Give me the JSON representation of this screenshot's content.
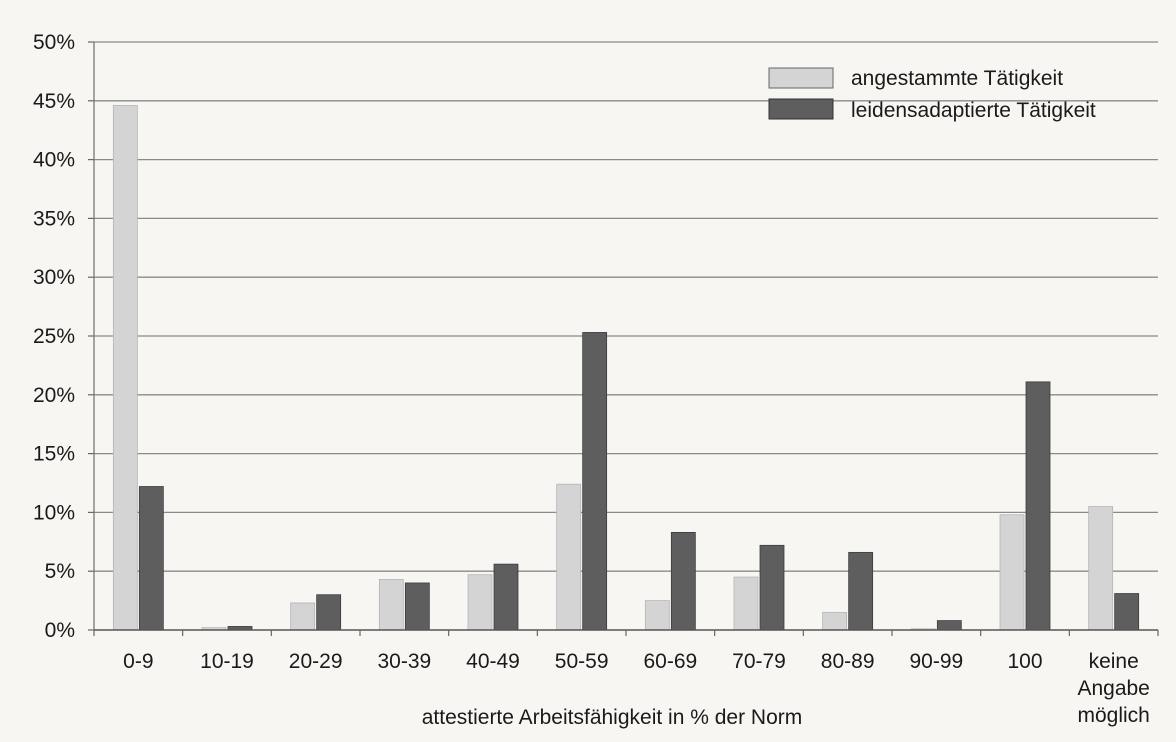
{
  "chart_data": {
    "type": "bar",
    "title": "",
    "xlabel": "attestierte Arbeitsfähigkeit in % der Norm",
    "ylabel": "",
    "ylim": [
      0,
      50
    ],
    "yticks": [
      "0%",
      "5%",
      "10%",
      "15%",
      "20%",
      "25%",
      "30%",
      "35%",
      "40%",
      "45%",
      "50%"
    ],
    "grid": true,
    "legend_position": "top-right",
    "categories": [
      "0-9",
      "10-19",
      "20-29",
      "30-39",
      "40-49",
      "50-59",
      "60-69",
      "70-79",
      "80-89",
      "90-99",
      "100",
      "keine Angabe möglich"
    ],
    "category_lines": [
      [
        "0-9"
      ],
      [
        "10-19"
      ],
      [
        "20-29"
      ],
      [
        "30-39"
      ],
      [
        "40-49"
      ],
      [
        "50-59"
      ],
      [
        "60-69"
      ],
      [
        "70-79"
      ],
      [
        "80-89"
      ],
      [
        "90-99"
      ],
      [
        "100"
      ],
      [
        "keine",
        "Angabe",
        "möglich"
      ]
    ],
    "series": [
      {
        "name": "angestammte Tätigkeit",
        "color": "#d4d4d4",
        "values": [
          44.6,
          0.2,
          2.3,
          4.3,
          4.7,
          12.4,
          2.5,
          4.5,
          1.5,
          0.1,
          9.8,
          10.5
        ]
      },
      {
        "name": "leidensadaptierte Tätigkeit",
        "color": "#5e5e5e",
        "values": [
          12.2,
          0.3,
          3.0,
          4.0,
          5.6,
          25.3,
          8.3,
          7.2,
          6.6,
          0.8,
          21.1,
          3.1
        ]
      }
    ]
  }
}
